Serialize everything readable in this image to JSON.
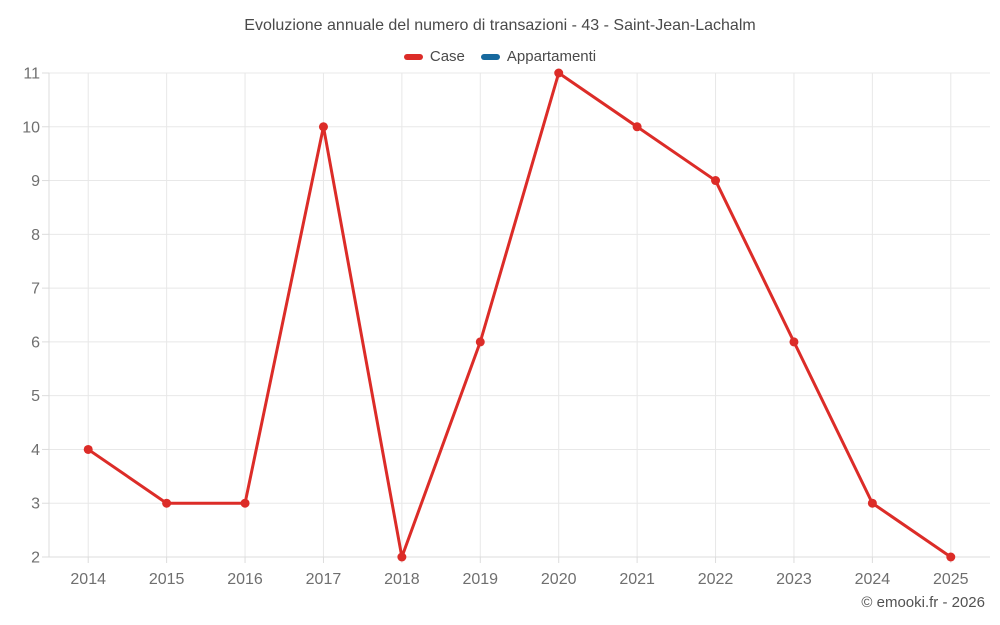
{
  "title": "Evoluzione annuale del numero di transazioni - 43 - Saint-Jean-Lachalm",
  "copyright": "© emooki.fr - 2026",
  "legend": [
    {
      "label": "Case",
      "color": "#dc2c28"
    },
    {
      "label": "Appartamenti",
      "color": "#17699e"
    }
  ],
  "colors": {
    "grid": "#e8e8e8",
    "axis": "#dcdcdc",
    "tick": "#dcdcdc",
    "axis_label": "#6f6f6f",
    "title_text": "#4a4a4a"
  },
  "chart_data": {
    "type": "line",
    "title": "Evoluzione annuale del numero di transazioni - 43 - Saint-Jean-Lachalm",
    "categories": [
      "2014",
      "2015",
      "2016",
      "2017",
      "2018",
      "2019",
      "2020",
      "2021",
      "2022",
      "2023",
      "2024",
      "2025"
    ],
    "series": [
      {
        "name": "Case",
        "color": "#dc2c28",
        "values": [
          4,
          3,
          3,
          10,
          2,
          6,
          11,
          10,
          9,
          6,
          3,
          2
        ]
      },
      {
        "name": "Appartamenti",
        "color": "#17699e",
        "values": []
      }
    ],
    "xlabel": "",
    "ylabel": "",
    "ylim": [
      2,
      11
    ],
    "yticks": [
      2,
      3,
      4,
      5,
      6,
      7,
      8,
      9,
      10,
      11
    ],
    "grid": true,
    "legend_position": "top"
  }
}
